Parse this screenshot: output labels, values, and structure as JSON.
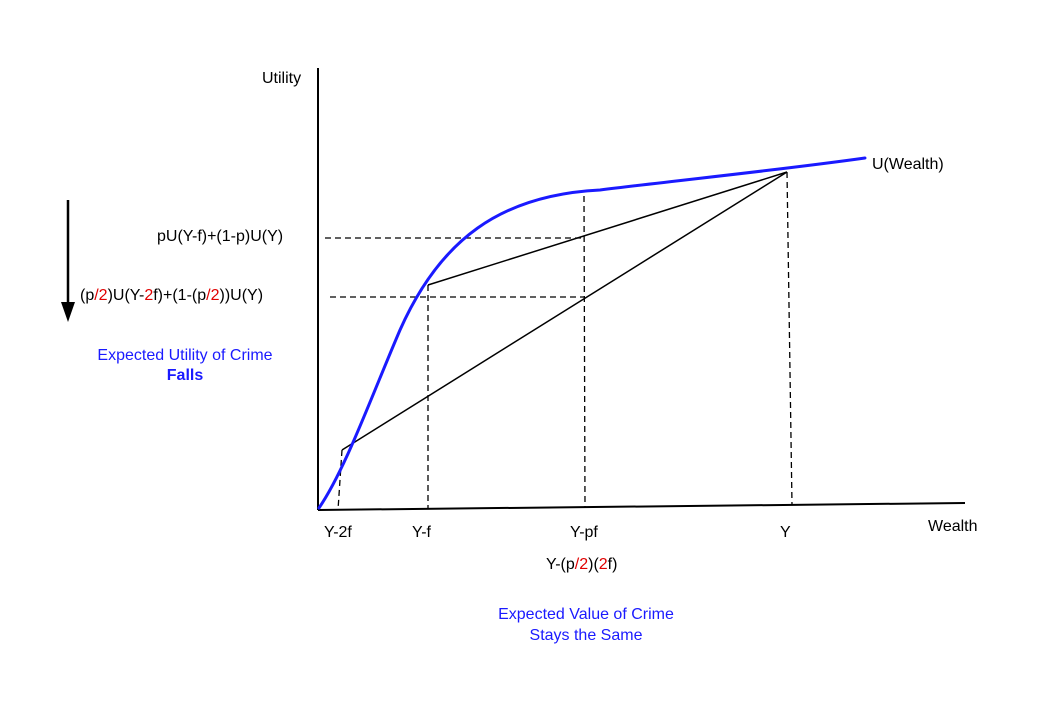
{
  "axes": {
    "y_label": "Utility",
    "x_label": "Wealth"
  },
  "curve": {
    "label": "U(Wealth)",
    "color": "#1a1aff"
  },
  "x_ticks": {
    "y_2f": "Y-2f",
    "y_f": "Y-f",
    "y_pf": "Y-pf",
    "y": "Y"
  },
  "x_expr": {
    "part1": "Y-(p",
    "half": "/2",
    "part2": ")(",
    "two": "2",
    "part3": "f)"
  },
  "y_expr_top": "pU(Y-f)+(1-p)U(Y)",
  "y_expr_bottom": {
    "part1": "(p",
    "half1": "/2",
    "part2": ")U(Y-",
    "two": "2",
    "part3": "f)+(1-(p",
    "half2": "/2",
    "part4": "))U(Y)"
  },
  "left_note": {
    "line1": "Expected Utility of Crime",
    "line2": "Falls"
  },
  "bottom_note": {
    "line1": "Expected Value of Crime",
    "line2": "Stays the Same"
  },
  "colors": {
    "accent_red": "#e00000",
    "text_blue": "#1a1aff"
  }
}
